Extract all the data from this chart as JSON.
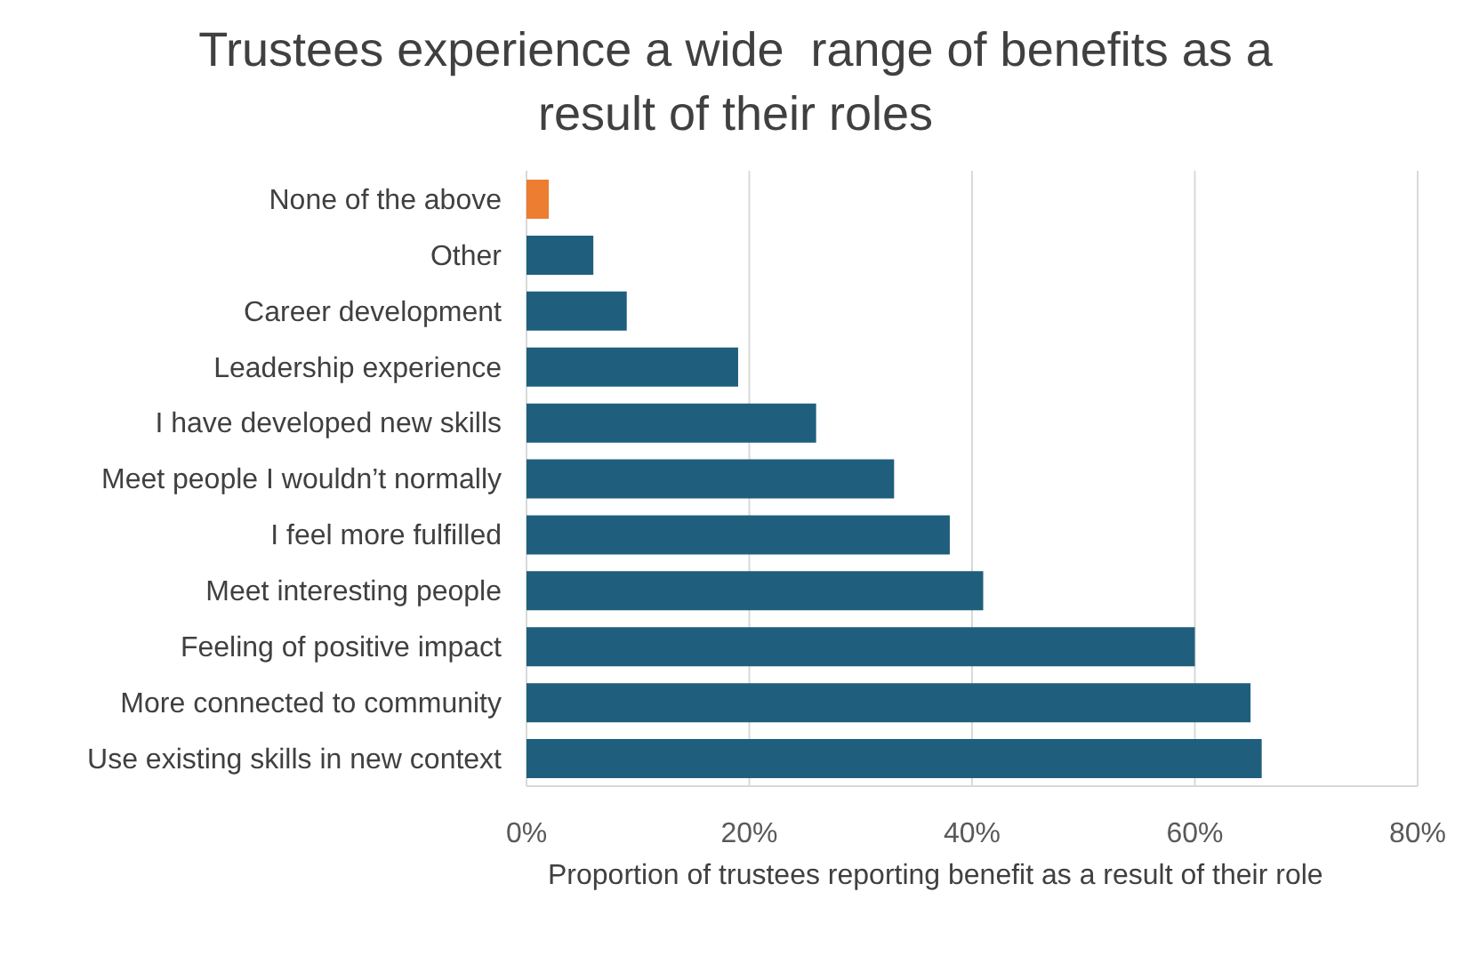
{
  "chart_data": {
    "type": "bar",
    "orientation": "horizontal",
    "title": "Trustees experience a wide  range of benefits as a result of their roles",
    "xlabel": "Proportion of trustees reporting benefit as a result of their role",
    "categories": [
      "None of the above",
      "Other",
      "Career development",
      "Leadership experience",
      "I have developed new skills",
      "Meet people I wouldn’t normally",
      "I feel more fulfilled",
      "Meet interesting people",
      "Feeling of positive impact",
      "More connected to community",
      "Use existing skills in new context"
    ],
    "values": [
      2,
      6,
      9,
      19,
      26,
      33,
      38,
      41,
      60,
      65,
      66
    ],
    "colors": [
      "#ed7d31",
      "#1f5f7d",
      "#1f5f7d",
      "#1f5f7d",
      "#1f5f7d",
      "#1f5f7d",
      "#1f5f7d",
      "#1f5f7d",
      "#1f5f7d",
      "#1f5f7d",
      "#1f5f7d"
    ],
    "xlim": [
      0,
      80
    ],
    "xticks": [
      {
        "value": 0,
        "label": "0%"
      },
      {
        "value": 20,
        "label": "20%"
      },
      {
        "value": 40,
        "label": "40%"
      },
      {
        "value": 60,
        "label": "60%"
      },
      {
        "value": 80,
        "label": "80%"
      }
    ],
    "grid": "x",
    "legend": false
  }
}
